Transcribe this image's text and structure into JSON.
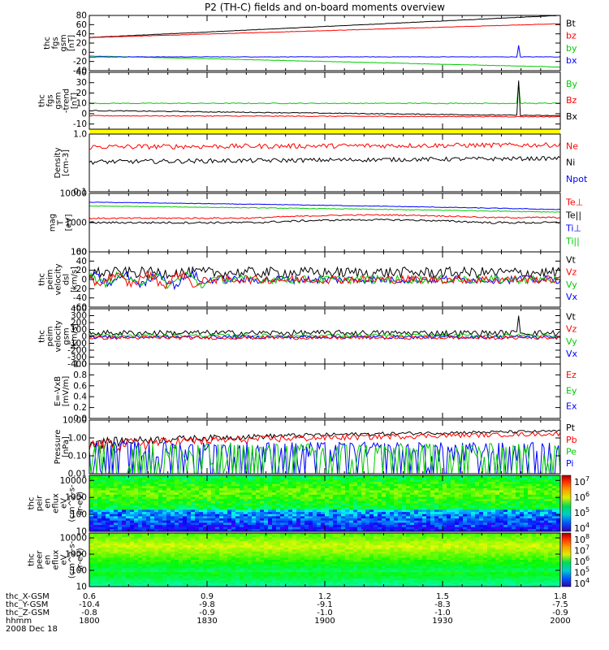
{
  "title": "P2 (TH-C) fields and on-board moments overview",
  "colors": {
    "black": "#000000",
    "red": "#ff0000",
    "green": "#00cc00",
    "blue": "#0000ff",
    "yellow": "#ffff00"
  },
  "chart_data": [
    {
      "id": "fgs_gsm",
      "type": "line",
      "ylabel": [
        "thc",
        "fgs",
        "gsm",
        "[nT]"
      ],
      "yticks": [
        "80",
        "60",
        "40",
        "20",
        "0",
        "-20",
        "-40"
      ],
      "ylim": [
        -40,
        80
      ],
      "log": false,
      "legend": [
        [
          "Bt",
          "black"
        ],
        [
          "bz",
          "red"
        ],
        [
          "by",
          "green"
        ],
        [
          "bx",
          "blue"
        ]
      ],
      "series": [
        {
          "name": "Bt",
          "color": "black",
          "start": 32,
          "end": 80
        },
        {
          "name": "bz",
          "color": "red",
          "start": 32,
          "end": 62
        },
        {
          "name": "by",
          "color": "green",
          "start": -8,
          "end": -32
        },
        {
          "name": "bx",
          "color": "blue",
          "start": -10,
          "end": -10,
          "spike_at": 0.91,
          "spike_to": 15
        }
      ]
    },
    {
      "id": "fgs_gsm_dtrend",
      "type": "line",
      "ylabel": [
        "thc",
        "fgs",
        "gsm",
        "-trend",
        "[nT]"
      ],
      "yticks": [
        "40",
        "30",
        "20",
        "10",
        "0",
        "-10"
      ],
      "ylim": [
        -15,
        40
      ],
      "log": false,
      "legend": [
        [
          "By",
          "green"
        ],
        [
          "Bz",
          "red"
        ],
        [
          "Bx",
          "black"
        ]
      ],
      "series": [
        {
          "name": "By",
          "color": "green",
          "start": 10,
          "end": 10,
          "spike_at": 0.91,
          "spike_to": 30
        },
        {
          "name": "Bz",
          "color": "red",
          "start": -2,
          "end": -3
        },
        {
          "name": "Bx",
          "color": "black",
          "start": 3,
          "end": -2,
          "spike_at": 0.91,
          "spike_to": 32
        }
      ]
    },
    {
      "id": "density",
      "type": "line",
      "ylabel": [
        "Density",
        "[cm-3]"
      ],
      "yticks": [
        "1.0",
        "0.1"
      ],
      "ylim": [
        0.1,
        1.0
      ],
      "log": true,
      "legend": [
        [
          "Ne",
          "red"
        ],
        [
          "Ni",
          "black"
        ],
        [
          "Npot",
          "blue"
        ]
      ],
      "series": [
        {
          "name": "Ne",
          "color": "red",
          "start": 0.6,
          "end": 0.65
        },
        {
          "name": "Ni",
          "color": "black",
          "start": 0.33,
          "end": 0.38
        }
      ]
    },
    {
      "id": "temperature",
      "type": "line",
      "ylabel": [
        "mag",
        "T",
        "[eV]"
      ],
      "yticks": [
        "10000",
        "1000",
        "100"
      ],
      "ylim": [
        100,
        10000
      ],
      "log": true,
      "legend": [
        [
          "Te⊥",
          "red"
        ],
        [
          "Te||",
          "black"
        ],
        [
          "Ti⊥",
          "blue"
        ],
        [
          "Ti||",
          "green"
        ]
      ],
      "series": [
        {
          "name": "Ti⊥",
          "color": "blue",
          "start": 5000,
          "end": 2800
        },
        {
          "name": "Ti||",
          "color": "green",
          "start": 3700,
          "end": 2300
        },
        {
          "name": "Te⊥",
          "color": "red",
          "start": 1400,
          "end": 1500
        },
        {
          "name": "Te||",
          "color": "black",
          "start": 1000,
          "end": 1000
        }
      ]
    },
    {
      "id": "peim_velocity_dsl",
      "type": "line",
      "ylabel": [
        "thc",
        "peim",
        "velocity",
        "dsl",
        "[km/s]"
      ],
      "yticks": [
        "60",
        "40",
        "20",
        "0",
        "-20",
        "-40",
        "-60"
      ],
      "ylim": [
        -60,
        60
      ],
      "log": false,
      "legend": [
        [
          "Vt",
          "black"
        ],
        [
          "Vz",
          "red"
        ],
        [
          "Vy",
          "green"
        ],
        [
          "Vx",
          "blue"
        ]
      ],
      "series": [
        {
          "name": "Vt",
          "color": "black",
          "start": 15,
          "end": 15
        },
        {
          "name": "Vx",
          "color": "blue",
          "start": 0,
          "end": 0
        },
        {
          "name": "Vy",
          "color": "green",
          "start": 0,
          "end": 0
        },
        {
          "name": "Vz",
          "color": "red",
          "start": 0,
          "end": 0
        }
      ]
    },
    {
      "id": "peim_velocity_gsm",
      "type": "line",
      "ylabel": [
        "thc",
        "peim",
        "velocity",
        "gsm",
        "[km/s]"
      ],
      "yticks": [
        "400",
        "300",
        "200",
        "100",
        "0",
        "-100",
        "-200",
        "-300",
        "-400"
      ],
      "ylim": [
        -400,
        400
      ],
      "log": false,
      "legend": [
        [
          "Vt",
          "black"
        ],
        [
          "Vz",
          "red"
        ],
        [
          "Vy",
          "green"
        ],
        [
          "Vx",
          "blue"
        ]
      ],
      "series": [
        {
          "name": "Vt",
          "color": "black",
          "start": 50,
          "end": 50,
          "spike_at": 0.91,
          "spike_to": 300
        },
        {
          "name": "Vy",
          "color": "green",
          "start": 10,
          "end": 10
        },
        {
          "name": "Vx",
          "color": "blue",
          "start": -10,
          "end": -10
        },
        {
          "name": "Vz",
          "color": "red",
          "start": -20,
          "end": -20
        }
      ]
    },
    {
      "id": "efield",
      "type": "line",
      "ylabel": [
        "E=-VxB",
        "[mV/m]"
      ],
      "yticks": [
        "1.0",
        "0.8",
        "0.6",
        "0.4",
        "0.2",
        "0.0"
      ],
      "ylim": [
        0,
        1
      ],
      "log": false,
      "legend": [
        [
          "Ez",
          "red"
        ],
        [
          "Ey",
          "green"
        ],
        [
          "Ex",
          "blue"
        ]
      ],
      "series": []
    },
    {
      "id": "pressure",
      "type": "line",
      "ylabel": [
        "Pressure",
        "[nPa]"
      ],
      "yticks": [
        "10.00",
        "1.00",
        "0.10",
        "0.01"
      ],
      "ylim": [
        0.01,
        10
      ],
      "log": true,
      "legend": [
        [
          "Pt",
          "black"
        ],
        [
          "Pb",
          "red"
        ],
        [
          "Pe",
          "green"
        ],
        [
          "Pi",
          "blue"
        ]
      ],
      "series": [
        {
          "name": "Pt",
          "color": "black",
          "start": 0.6,
          "end": 2.4
        },
        {
          "name": "Pb",
          "color": "red",
          "start": 0.42,
          "end": 1.7
        },
        {
          "name": "Pi",
          "color": "blue",
          "start": 0.22,
          "end": 0.15
        },
        {
          "name": "Pe",
          "color": "green",
          "start": 0.09,
          "end": 0.09
        }
      ]
    },
    {
      "id": "peir_spectrogram",
      "type": "heatmap",
      "ylabel": [
        "thc",
        "peir",
        "en",
        "eflux",
        "eV",
        "(cm^2-s-",
        "sr-eV)"
      ],
      "yticks": [
        "10000",
        "1000",
        "100",
        "10"
      ],
      "ylim": [
        10,
        20000
      ],
      "log": true,
      "colorbar_ticks": [
        "10^7",
        "10^6",
        "10^5",
        "10^4"
      ]
    },
    {
      "id": "peer_spectrogram",
      "type": "heatmap",
      "ylabel": [
        "thc",
        "peer",
        "en",
        "eflux",
        "eV",
        "(cm^2-s-",
        "sr-eV)"
      ],
      "yticks": [
        "10000",
        "1000",
        "100",
        "10"
      ],
      "ylim": [
        10,
        20000
      ],
      "log": true,
      "colorbar_ticks": [
        "10^8",
        "10^7",
        "10^6",
        "10^5",
        "10^4"
      ]
    }
  ],
  "xaxis": {
    "rows": [
      {
        "label": "thc_X-GSM",
        "values": [
          "0.6",
          "0.9",
          "1.2",
          "1.5",
          "1.8"
        ]
      },
      {
        "label": "thc_Y-GSM",
        "values": [
          "-10.4",
          "-9.8",
          "-9.1",
          "-8.3",
          "-7.5"
        ]
      },
      {
        "label": "thc_Z-GSM",
        "values": [
          "-0.8",
          "-0.9",
          "-1.0",
          "-1.0",
          "-0.9"
        ]
      },
      {
        "label": "hhmm",
        "values": [
          "1800",
          "1830",
          "1900",
          "1930",
          "2000"
        ]
      }
    ],
    "date": "2008 Dec 18"
  }
}
